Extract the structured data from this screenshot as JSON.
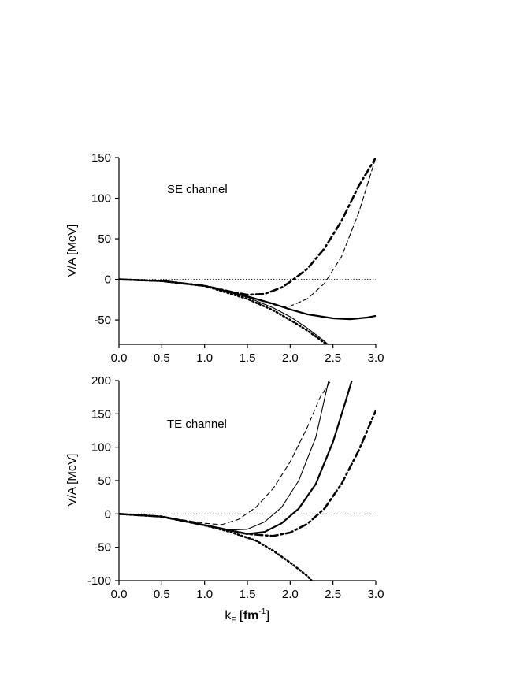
{
  "figure": {
    "xlabel_main": "k",
    "xlabel_sub": "F",
    "xlabel_unit_open": "[fm",
    "xlabel_unit_exp": "-1",
    "xlabel_unit_close": "]"
  },
  "chart_data": [
    {
      "type": "line",
      "annotation": "SE channel",
      "xlabel": "",
      "ylabel": "V/A [MeV]",
      "xlim": [
        0,
        3
      ],
      "ylim": [
        -80,
        150
      ],
      "xticks": [
        "0.0",
        "0.5",
        "1.0",
        "1.5",
        "2.0",
        "2.5",
        "3.0"
      ],
      "yticks": [
        "150",
        "100",
        "50",
        "0",
        "-50"
      ],
      "ytick_values": [
        150,
        100,
        50,
        0,
        -50
      ],
      "reference_line": 0,
      "series": [
        {
          "style": "dash-dot-thick",
          "x": [
            0,
            0.5,
            1.0,
            1.3,
            1.5,
            1.7,
            1.9,
            2.0,
            2.2,
            2.4,
            2.6,
            2.8,
            3.0
          ],
          "y": [
            0,
            -2,
            -8,
            -15,
            -19,
            -18,
            -10,
            -3,
            13,
            38,
            72,
            115,
            150
          ]
        },
        {
          "style": "dashed-thin",
          "x": [
            0,
            0.5,
            1.0,
            1.5,
            1.7,
            1.9,
            2.0,
            2.2,
            2.4,
            2.6,
            2.8,
            3.0
          ],
          "y": [
            0,
            -2,
            -8,
            -21,
            -28,
            -34,
            -33,
            -24,
            -5,
            28,
            82,
            150
          ]
        },
        {
          "style": "solid-thick",
          "x": [
            0,
            0.5,
            1.0,
            1.5,
            1.8,
            2.0,
            2.2,
            2.5,
            2.7,
            2.9,
            3.0
          ],
          "y": [
            0,
            -2,
            -8,
            -21,
            -30,
            -37,
            -43,
            -48,
            -49,
            -47,
            -45
          ]
        },
        {
          "style": "solid-thin",
          "x": [
            0,
            0.5,
            1.0,
            1.5,
            1.8,
            2.0,
            2.2,
            2.4,
            2.45
          ],
          "y": [
            0,
            -2,
            -8,
            -22,
            -35,
            -46,
            -60,
            -76,
            -81
          ]
        },
        {
          "style": "dotted-thick",
          "x": [
            0,
            0.5,
            1.0,
            1.5,
            1.8,
            2.0,
            2.2,
            2.4,
            2.45
          ],
          "y": [
            0,
            -2,
            -8,
            -24,
            -38,
            -50,
            -63,
            -78,
            -81
          ]
        }
      ]
    },
    {
      "type": "line",
      "annotation": "TE channel",
      "xlabel": "kF [fm-1]",
      "ylabel": "V/A [MeV]",
      "xlim": [
        0,
        3
      ],
      "ylim": [
        -100,
        200
      ],
      "xticks": [
        "0.0",
        "0.5",
        "1.0",
        "1.5",
        "2.0",
        "2.5",
        "3.0"
      ],
      "yticks": [
        "200",
        "150",
        "100",
        "50",
        "0",
        "-50",
        "-100"
      ],
      "ytick_values": [
        200,
        150,
        100,
        50,
        0,
        -50,
        -100
      ],
      "reference_line": 0,
      "series": [
        {
          "style": "dashed-thin",
          "x": [
            0,
            0.5,
            1.0,
            1.2,
            1.4,
            1.6,
            1.8,
            2.0,
            2.2,
            2.35,
            2.5
          ],
          "y": [
            0,
            -4,
            -14,
            -16,
            -8,
            10,
            38,
            78,
            130,
            175,
            205
          ]
        },
        {
          "style": "solid-thin",
          "x": [
            0,
            0.5,
            1.0,
            1.3,
            1.5,
            1.7,
            1.9,
            2.1,
            2.3,
            2.45
          ],
          "y": [
            0,
            -4,
            -16,
            -24,
            -23,
            -12,
            10,
            50,
            115,
            200
          ]
        },
        {
          "style": "solid-thick",
          "x": [
            0,
            0.5,
            1.0,
            1.5,
            1.7,
            1.9,
            2.1,
            2.3,
            2.5,
            2.65,
            2.72
          ],
          "y": [
            0,
            -4,
            -17,
            -30,
            -27,
            -14,
            8,
            45,
            108,
            170,
            200
          ]
        },
        {
          "style": "dash-dot-thick",
          "x": [
            0,
            0.5,
            1.0,
            1.5,
            1.8,
            2.0,
            2.2,
            2.4,
            2.6,
            2.8,
            3.0
          ],
          "y": [
            0,
            -4,
            -17,
            -30,
            -33,
            -28,
            -15,
            8,
            45,
            95,
            155
          ]
        },
        {
          "style": "dotted-thick",
          "x": [
            0,
            0.5,
            1.0,
            1.3,
            1.6,
            1.8,
            2.0,
            2.2,
            2.25
          ],
          "y": [
            0,
            -4,
            -17,
            -27,
            -40,
            -55,
            -73,
            -93,
            -100
          ]
        }
      ]
    }
  ]
}
